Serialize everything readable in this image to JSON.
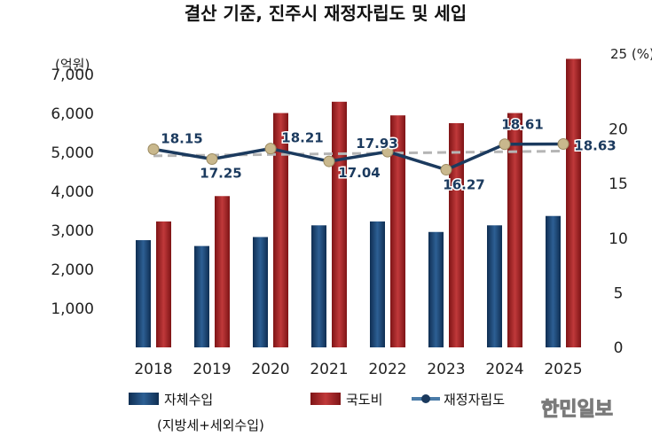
{
  "chart_data": {
    "type": "bar",
    "title": "결산 기준, 진주시 재정자립도 및 세입",
    "left_axis_unit": "(억원)",
    "right_axis_unit": "25 (%)",
    "categories": [
      "2018",
      "2019",
      "2020",
      "2021",
      "2022",
      "2023",
      "2024",
      "2025"
    ],
    "ylim_left": [
      0,
      7000
    ],
    "left_ticks": [
      "1,000",
      "2,000",
      "3,000",
      "4,000",
      "5,000",
      "6,000",
      "7,000"
    ],
    "ylim_right": [
      0,
      25
    ],
    "right_ticks": [
      "0",
      "5",
      "10",
      "15",
      "20"
    ],
    "series": [
      {
        "name": "자체수입",
        "name_line2": "(지방세+세외수입)",
        "axis": "left",
        "color": "#1d4a7a",
        "values": [
          2750,
          2600,
          2830,
          3130,
          3230,
          2960,
          3130,
          3370
        ]
      },
      {
        "name": "국도비",
        "axis": "left",
        "color": "#a92a2c",
        "values": [
          3230,
          3880,
          6010,
          6300,
          5950,
          5750,
          6010,
          7400
        ]
      },
      {
        "name": "재정자립도",
        "axis": "right",
        "type": "line",
        "color": "#1b3a5e",
        "marker_color": "#c9b88d",
        "values": [
          18.15,
          17.25,
          18.21,
          17.04,
          17.93,
          16.27,
          18.61,
          18.63
        ],
        "labels": [
          "18.15",
          "17.25",
          "18.21",
          "17.04",
          "17.93",
          "16.27",
          "18.61",
          "18.63"
        ]
      }
    ],
    "trendline": {
      "color": "#b5b5b5",
      "style": "dashed"
    },
    "grid": false,
    "legend_position": "bottom"
  },
  "watermark": "한민일보"
}
